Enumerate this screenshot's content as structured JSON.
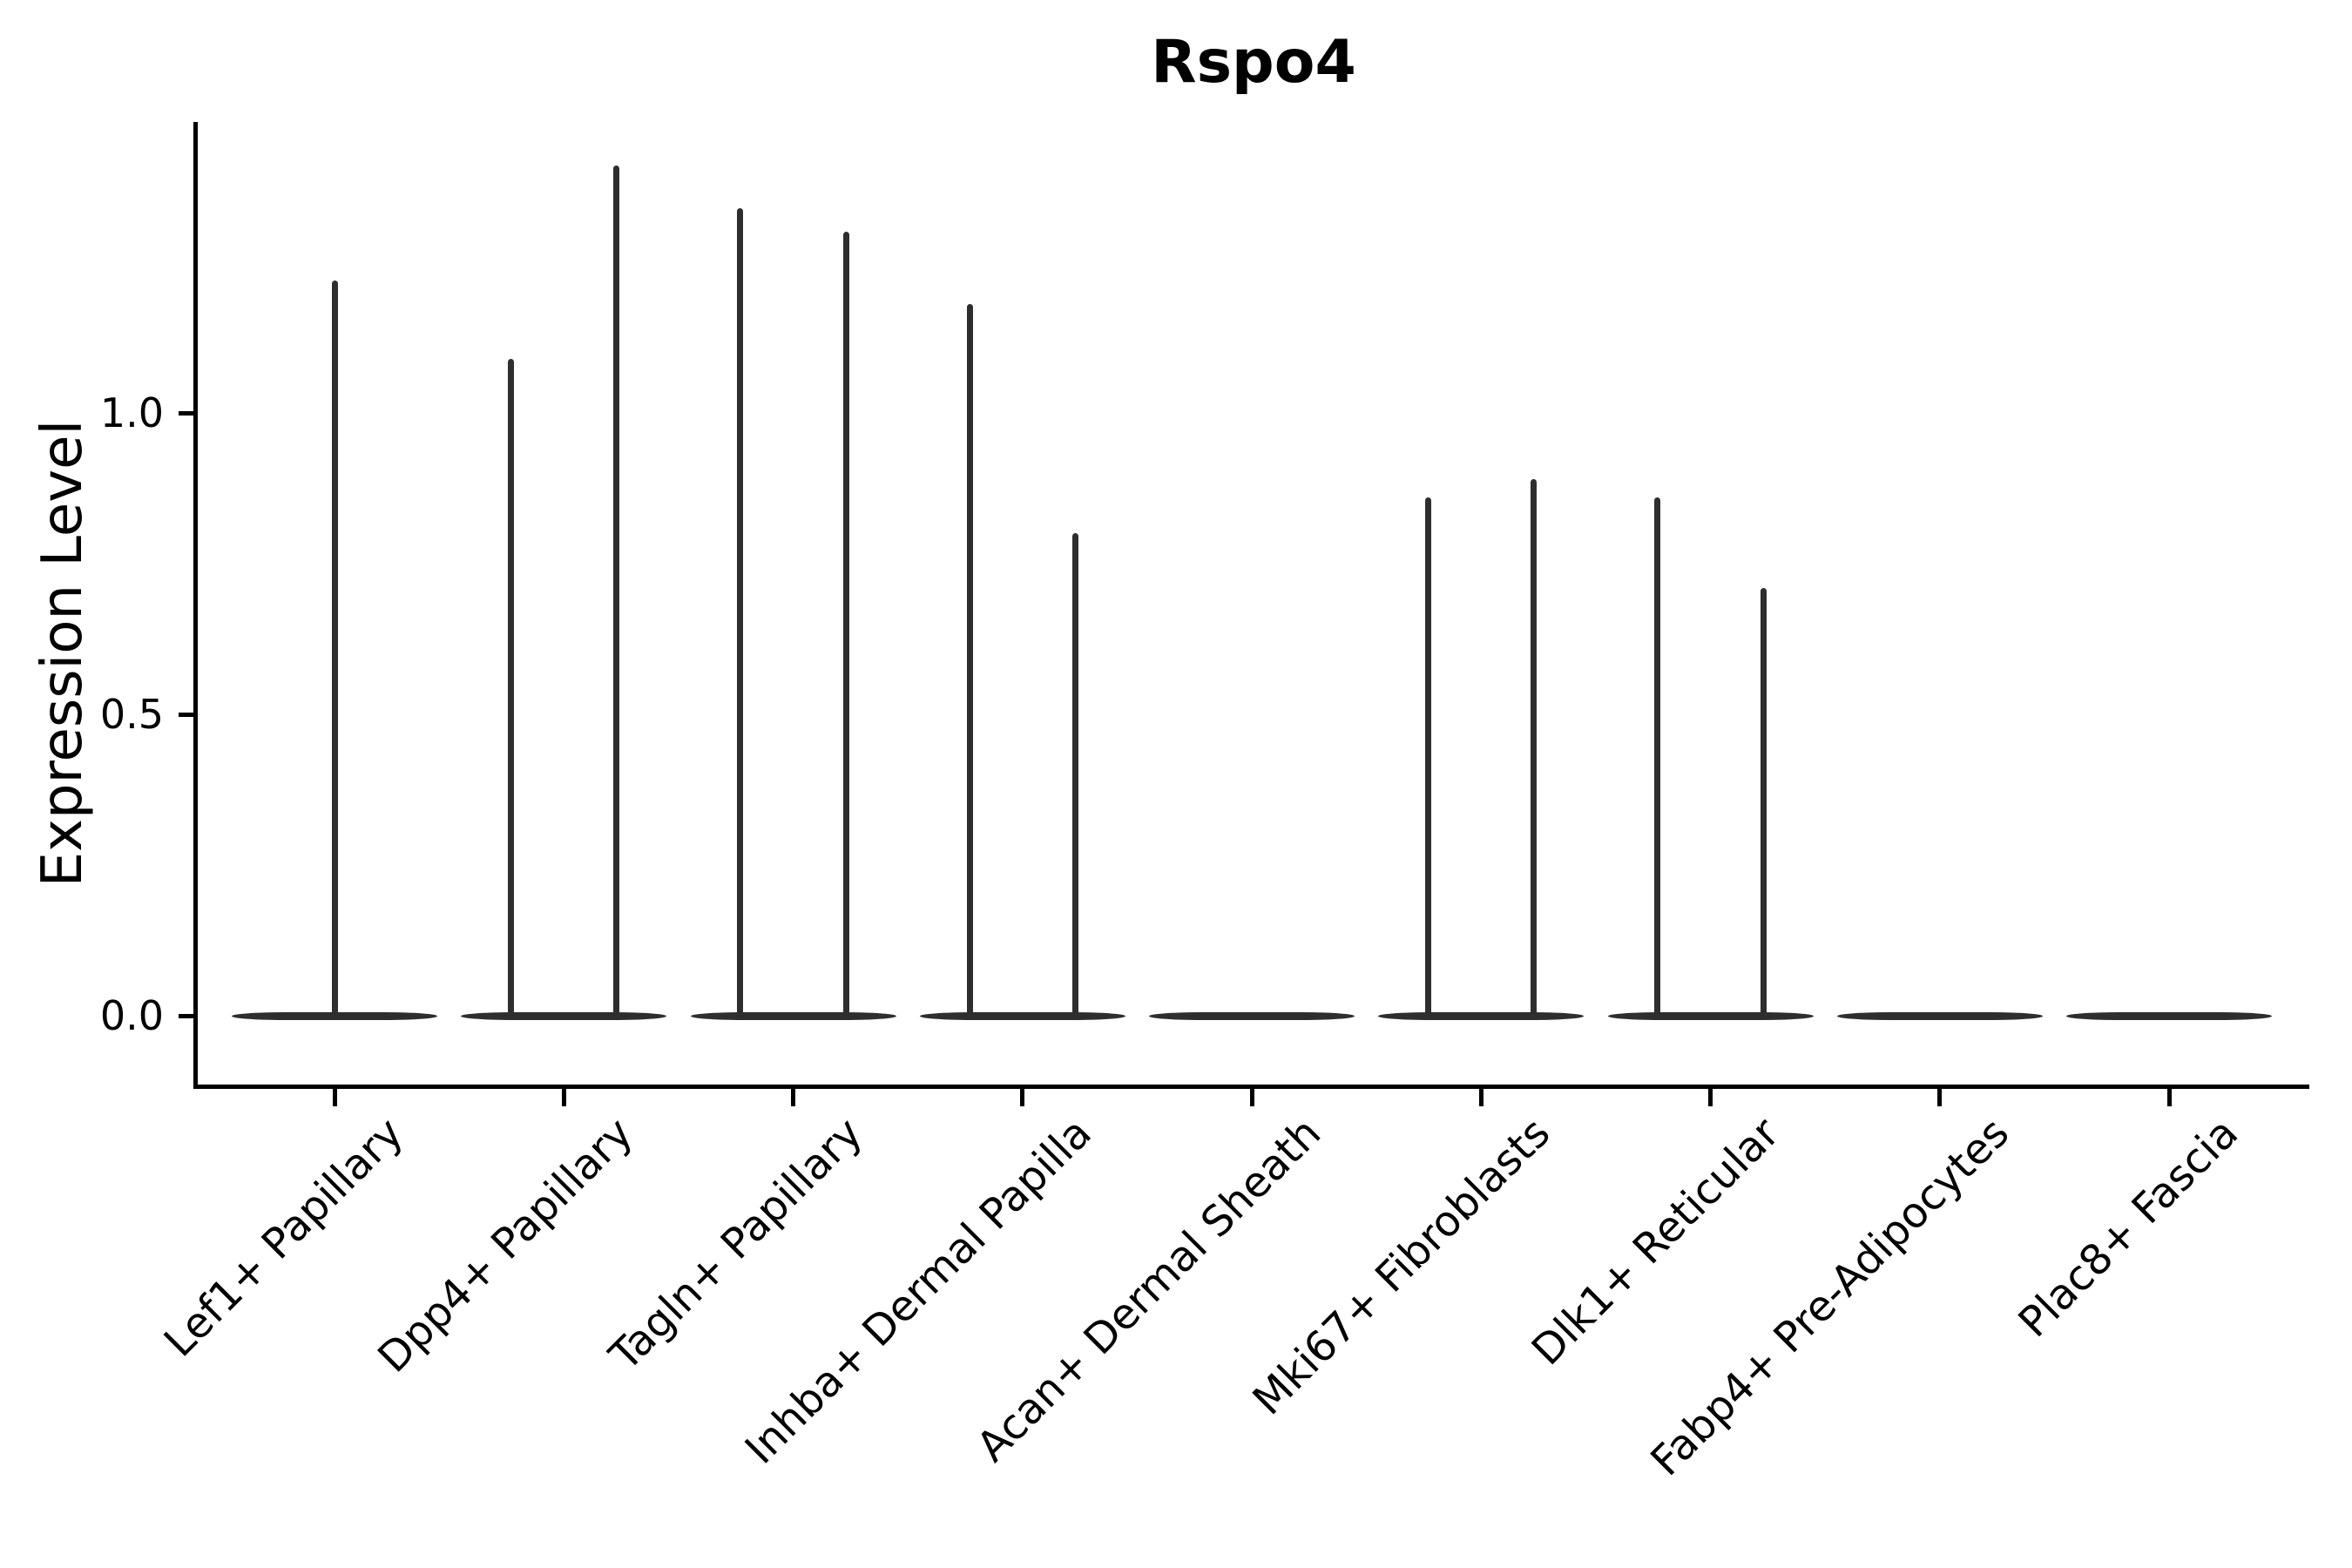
{
  "figure": {
    "title": "Rspo4",
    "ylabel": "Expression Level",
    "ytick_labels": [
      "0.0",
      "0.5",
      "1.0"
    ]
  },
  "chart_data": {
    "type": "violin",
    "title": "Rspo4",
    "xlabel": "",
    "ylabel": "Expression Level",
    "categories": [
      "Lef1+ Papillary",
      "Dpp4+ Papillary",
      "Tagln+ Papillary",
      "Inhba+ Dermal Papilla",
      "Acan+ Dermal Sheath",
      "Mki67+ Fibroblasts",
      "Dlk1+ Reticular",
      "Fabp4+ Pre-Adipocytes",
      "Plac8+ Fascia"
    ],
    "yticks": [
      0.0,
      0.5,
      1.0
    ],
    "ytick_labels": [
      "0.0",
      "0.5",
      "1.0"
    ],
    "ylim": [
      -0.11,
      1.48
    ],
    "grid": false,
    "legend_position": "none",
    "description": "Violin plot of single-cell expression; every group has its density massed at 0 (flat wide base at y=0) with one or two thin spikes rising to the maximum expression values. Groups with two spikes have them dodged left/right of the category tick.",
    "baseline_value": 0,
    "violins": [
      {
        "category": "Lef1+ Papillary",
        "spike_offsets": [
          0
        ],
        "spike_maxima": [
          1.22
        ]
      },
      {
        "category": "Dpp4+ Papillary",
        "spike_offsets": [
          -0.23,
          0.23
        ],
        "spike_maxima": [
          1.09,
          1.41
        ]
      },
      {
        "category": "Tagln+ Papillary",
        "spike_offsets": [
          -0.23,
          0.23
        ],
        "spike_maxima": [
          1.34,
          1.3
        ]
      },
      {
        "category": "Inhba+ Dermal Papilla",
        "spike_offsets": [
          -0.23,
          0.23
        ],
        "spike_maxima": [
          1.18,
          0.8
        ]
      },
      {
        "category": "Acan+ Dermal Sheath",
        "spike_offsets": [],
        "spike_maxima": []
      },
      {
        "category": "Mki67+ Fibroblasts",
        "spike_offsets": [
          -0.23,
          0.23
        ],
        "spike_maxima": [
          0.86,
          0.89
        ]
      },
      {
        "category": "Dlk1+ Reticular",
        "spike_offsets": [
          -0.23,
          0.23
        ],
        "spike_maxima": [
          0.86,
          0.71
        ]
      },
      {
        "category": "Fabp4+ Pre-Adipocytes",
        "spike_offsets": [],
        "spike_maxima": []
      },
      {
        "category": "Plac8+ Fascia",
        "spike_offsets": [],
        "spike_maxima": []
      }
    ],
    "colors": {
      "violin": "#2e2e2e",
      "axis": "#000000",
      "text": "#000000",
      "background": "#ffffff"
    }
  }
}
